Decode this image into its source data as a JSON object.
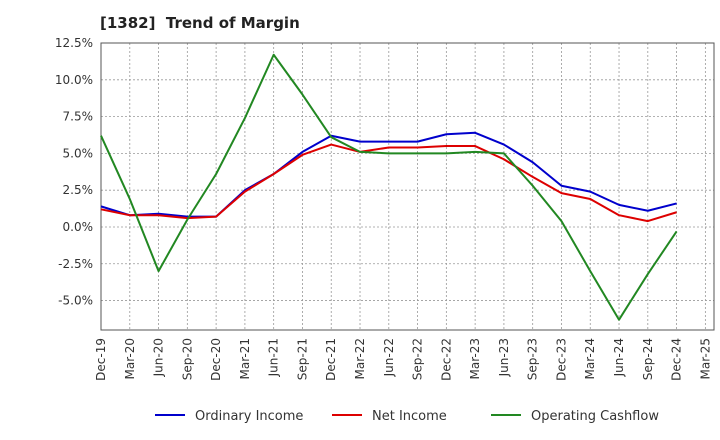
{
  "chart_data": {
    "type": "line",
    "title": "[1382]  Trend of Margin",
    "xlabel": "",
    "ylabel": "",
    "categories": [
      "Dec-19",
      "Mar-20",
      "Jun-20",
      "Sep-20",
      "Dec-20",
      "Mar-21",
      "Jun-21",
      "Sep-21",
      "Dec-21",
      "Mar-22",
      "Jun-22",
      "Sep-22",
      "Dec-22",
      "Mar-23",
      "Jun-23",
      "Sep-23",
      "Dec-23",
      "Mar-24",
      "Jun-24",
      "Sep-24",
      "Dec-24",
      "Mar-25"
    ],
    "ylim": [
      -7.0,
      12.5
    ],
    "yticks": [
      12.5,
      10.0,
      7.5,
      5.0,
      2.5,
      0.0,
      -2.5,
      -5.0
    ],
    "ytick_labels": [
      "12.5%",
      "10.0%",
      "7.5%",
      "5.0%",
      "2.5%",
      "0.0%",
      "-2.5%",
      "-5.0%"
    ],
    "grid": true,
    "legend_position": "bottom",
    "series": [
      {
        "name": "Ordinary Income",
        "color": "#0000cc",
        "values": [
          1.4,
          0.8,
          0.9,
          0.7,
          0.7,
          2.5,
          3.6,
          5.1,
          6.2,
          5.8,
          5.8,
          5.8,
          6.3,
          6.4,
          5.6,
          4.4,
          2.8,
          2.4,
          1.5,
          1.1,
          1.6,
          null
        ]
      },
      {
        "name": "Net Income",
        "color": "#dd0000",
        "values": [
          1.2,
          0.8,
          0.8,
          0.6,
          0.7,
          2.4,
          3.6,
          4.9,
          5.6,
          5.1,
          5.4,
          5.4,
          5.5,
          5.5,
          4.6,
          3.4,
          2.3,
          1.9,
          0.8,
          0.4,
          1.0,
          null
        ]
      },
      {
        "name": "Operating Cashflow",
        "color": "#228822",
        "values": [
          6.2,
          1.9,
          -3.0,
          0.5,
          3.6,
          7.4,
          11.7,
          9.0,
          6.1,
          5.1,
          5.0,
          5.0,
          5.0,
          5.1,
          5.0,
          2.8,
          0.4,
          -3.0,
          -6.3,
          -3.2,
          -0.3,
          null
        ]
      }
    ]
  }
}
